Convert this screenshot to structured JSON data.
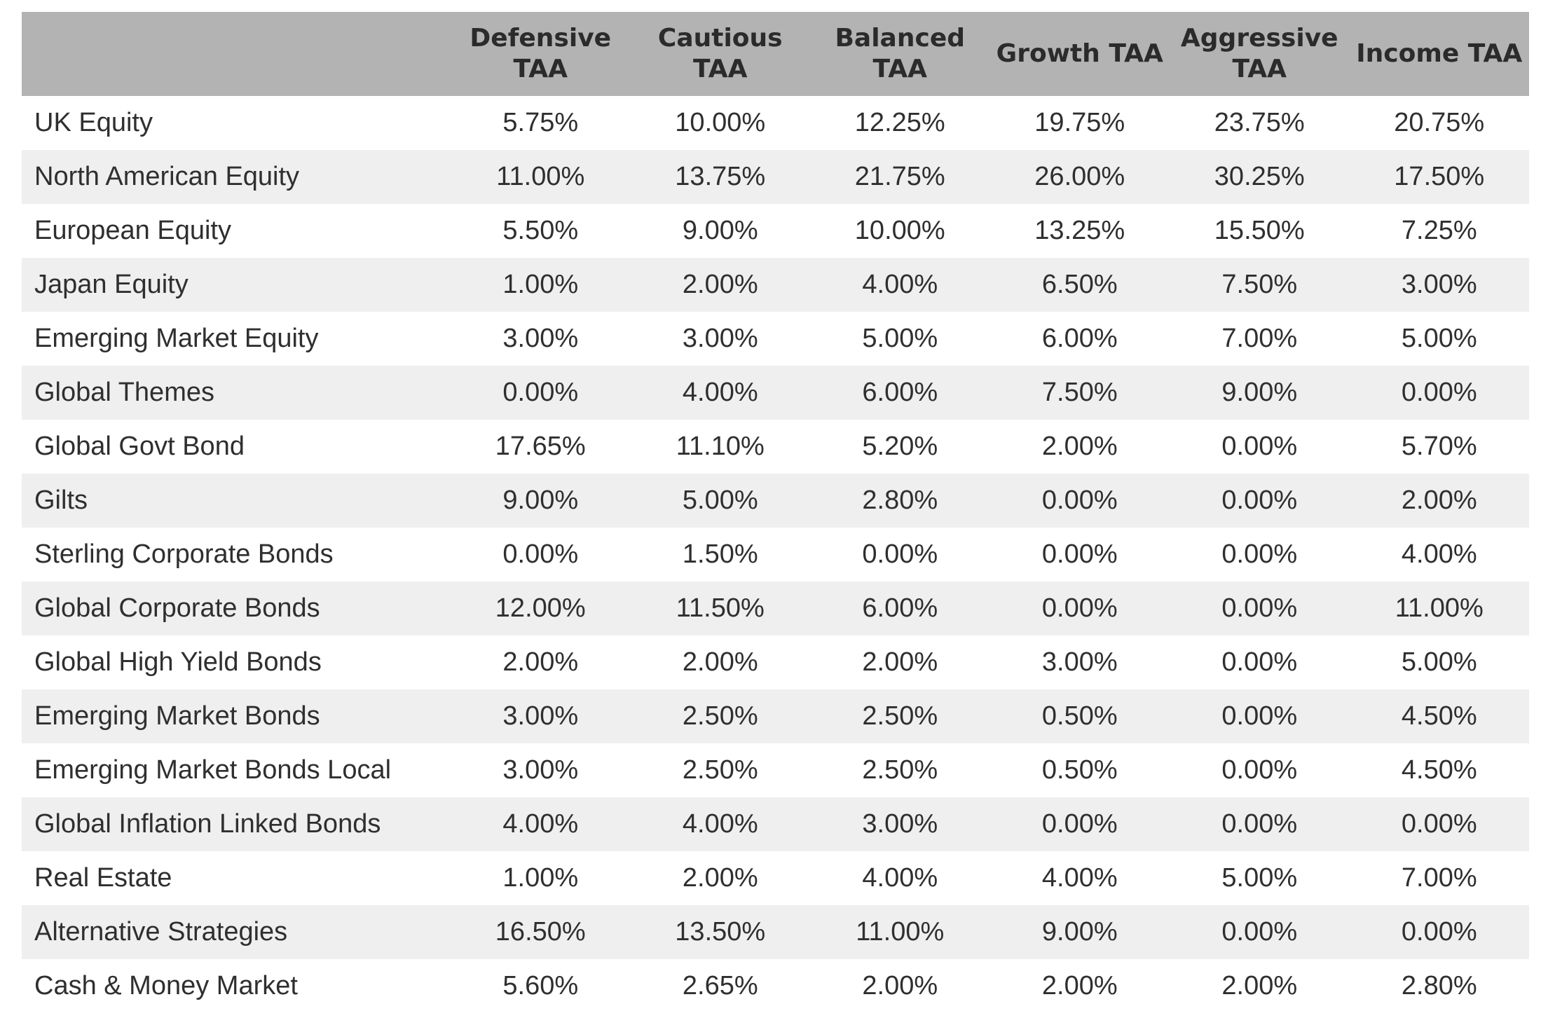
{
  "table": {
    "header_label": "",
    "columns": [
      "Defensive TAA",
      "Cautious TAA",
      "Balanced TAA",
      "Growth TAA",
      "Aggressive TAA",
      "Income TAA"
    ],
    "rows": [
      {
        "label": "UK Equity",
        "values": [
          "5.75%",
          "10.00%",
          "12.25%",
          "19.75%",
          "23.75%",
          "20.75%"
        ]
      },
      {
        "label": "North American Equity",
        "values": [
          "11.00%",
          "13.75%",
          "21.75%",
          "26.00%",
          "30.25%",
          "17.50%"
        ]
      },
      {
        "label": "European Equity",
        "values": [
          "5.50%",
          "9.00%",
          "10.00%",
          "13.25%",
          "15.50%",
          "7.25%"
        ]
      },
      {
        "label": "Japan Equity",
        "values": [
          "1.00%",
          "2.00%",
          "4.00%",
          "6.50%",
          "7.50%",
          "3.00%"
        ]
      },
      {
        "label": "Emerging Market Equity",
        "values": [
          "3.00%",
          "3.00%",
          "5.00%",
          "6.00%",
          "7.00%",
          "5.00%"
        ]
      },
      {
        "label": "Global Themes",
        "values": [
          "0.00%",
          "4.00%",
          "6.00%",
          "7.50%",
          "9.00%",
          "0.00%"
        ]
      },
      {
        "label": "Global Govt Bond",
        "values": [
          "17.65%",
          "11.10%",
          "5.20%",
          "2.00%",
          "0.00%",
          "5.70%"
        ]
      },
      {
        "label": "Gilts",
        "values": [
          "9.00%",
          "5.00%",
          "2.80%",
          "0.00%",
          "0.00%",
          "2.00%"
        ]
      },
      {
        "label": "Sterling Corporate Bonds",
        "values": [
          "0.00%",
          "1.50%",
          "0.00%",
          "0.00%",
          "0.00%",
          "4.00%"
        ]
      },
      {
        "label": "Global Corporate Bonds",
        "values": [
          "12.00%",
          "11.50%",
          "6.00%",
          "0.00%",
          "0.00%",
          "11.00%"
        ]
      },
      {
        "label": "Global High Yield Bonds",
        "values": [
          "2.00%",
          "2.00%",
          "2.00%",
          "3.00%",
          "0.00%",
          "5.00%"
        ]
      },
      {
        "label": "Emerging Market Bonds",
        "values": [
          "3.00%",
          "2.50%",
          "2.50%",
          "0.50%",
          "0.00%",
          "4.50%"
        ]
      },
      {
        "label": "Emerging Market Bonds Local",
        "values": [
          "3.00%",
          "2.50%",
          "2.50%",
          "0.50%",
          "0.00%",
          "4.50%"
        ]
      },
      {
        "label": "Global Inflation Linked Bonds",
        "values": [
          "4.00%",
          "4.00%",
          "3.00%",
          "0.00%",
          "0.00%",
          "0.00%"
        ]
      },
      {
        "label": "Real Estate",
        "values": [
          "1.00%",
          "2.00%",
          "4.00%",
          "4.00%",
          "5.00%",
          "7.00%"
        ]
      },
      {
        "label": "Alternative Strategies",
        "values": [
          "16.50%",
          "13.50%",
          "11.00%",
          "9.00%",
          "0.00%",
          "0.00%"
        ]
      },
      {
        "label": "Cash & Money Market",
        "values": [
          "5.60%",
          "2.65%",
          "2.00%",
          "2.00%",
          "2.00%",
          "2.80%"
        ]
      }
    ]
  }
}
